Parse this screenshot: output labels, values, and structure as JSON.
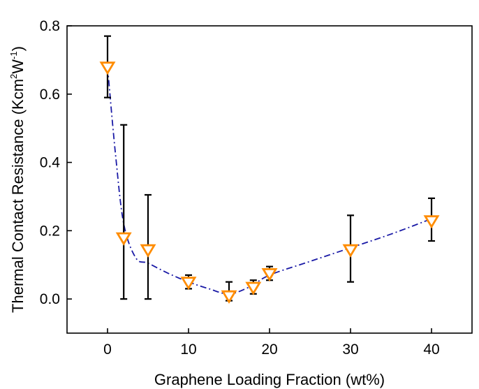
{
  "chart_data": {
    "type": "scatter",
    "title": "",
    "xlabel": "Graphene Loading Fraction (wt%)",
    "ylabel": {
      "prefix": "Thermal Contact Resistance (Kcm",
      "sup1": "2",
      "mid": "W",
      "sup2": "-1",
      "suffix": ")"
    },
    "xlim": [
      -5,
      45
    ],
    "ylim": [
      -0.1,
      0.8
    ],
    "xticks": [
      0,
      10,
      20,
      30,
      40
    ],
    "yticks": [
      0.0,
      0.2,
      0.4,
      0.6,
      0.8
    ],
    "xtick_labels": [
      "0",
      "10",
      "20",
      "30",
      "40"
    ],
    "ytick_labels": [
      "0.0",
      "0.2",
      "0.4",
      "0.6",
      "0.8"
    ],
    "grid": false,
    "legend": "none",
    "series": [
      {
        "marker": "triangle-down",
        "marker_color": "#FF8C00",
        "errorbar_color": "#000000",
        "points": [
          {
            "x": 0,
            "y": 0.68,
            "err_low": 0.59,
            "err_high": 0.77
          },
          {
            "x": 2,
            "y": 0.18,
            "err_low": 0.0,
            "err_high": 0.51
          },
          {
            "x": 5,
            "y": 0.145,
            "err_low": 0.0,
            "err_high": 0.305
          },
          {
            "x": 10,
            "y": 0.05,
            "err_low": 0.03,
            "err_high": 0.07
          },
          {
            "x": 15,
            "y": 0.01,
            "err_low": -0.005,
            "err_high": 0.05
          },
          {
            "x": 18,
            "y": 0.035,
            "err_low": 0.015,
            "err_high": 0.055
          },
          {
            "x": 20,
            "y": 0.075,
            "err_low": 0.055,
            "err_high": 0.095
          },
          {
            "x": 30,
            "y": 0.145,
            "err_low": 0.05,
            "err_high": 0.245
          },
          {
            "x": 40,
            "y": 0.23,
            "err_low": 0.17,
            "err_high": 0.295
          }
        ]
      }
    ],
    "fit_curve": {
      "style": "dash-dot",
      "color": "#1a1aa6",
      "points": [
        [
          0,
          0.68
        ],
        [
          1,
          0.42
        ],
        [
          2,
          0.22
        ],
        [
          3.5,
          0.12
        ],
        [
          5,
          0.105
        ],
        [
          7.5,
          0.075
        ],
        [
          10,
          0.05
        ],
        [
          12.5,
          0.03
        ],
        [
          15,
          0.015
        ],
        [
          17.5,
          0.035
        ],
        [
          20,
          0.07
        ],
        [
          25,
          0.11
        ],
        [
          30,
          0.15
        ],
        [
          35,
          0.19
        ],
        [
          40,
          0.235
        ]
      ]
    }
  }
}
